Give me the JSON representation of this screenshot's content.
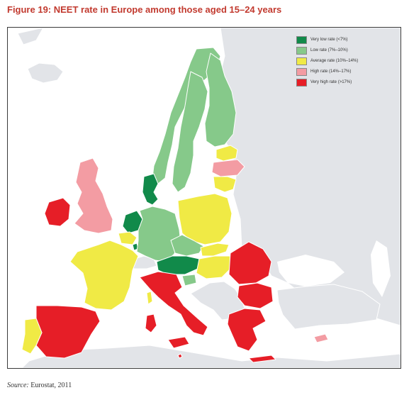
{
  "figure": {
    "title": "Figure 19: NEET rate in Europe among those aged 15–24 years",
    "source_label": "Source:",
    "source_text": " Eurostat, 2011"
  },
  "legend": [
    {
      "label": "Very low rate (<7%)",
      "color": "#118a4a"
    },
    {
      "label": "Low rate (7%–10%)",
      "color": "#86c98a"
    },
    {
      "label": "Average rate (10%–14%)",
      "color": "#f0ea45"
    },
    {
      "label": "High rate (14%–17%)",
      "color": "#f39ca3"
    },
    {
      "label": "Very high rate (>17%)",
      "color": "#e61e27"
    }
  ],
  "colors": {
    "no_data": "#e2e4e8",
    "sea": "#ffffff",
    "title": "#c23a2f"
  },
  "map": {
    "countries": {
      "iceland": "no_data",
      "ireland": "very_high",
      "united-kingdom": "high",
      "norway": "low",
      "sweden": "low",
      "finland": "low",
      "estonia": "average",
      "latvia": "high",
      "lithuania": "average",
      "denmark": "very_low",
      "netherlands": "very_low",
      "belgium": "average",
      "luxembourg": "very_low",
      "germany": "low",
      "poland": "average",
      "czech-republic": "low",
      "slovakia": "average",
      "austria": "very_low",
      "switzerland": "no_data",
      "slovenia": "low",
      "hungary": "average",
      "france": "average",
      "spain": "very_high",
      "portugal": "average",
      "italy": "very_high",
      "corsica": "average",
      "sardinia": "very_high",
      "sicily": "very_high",
      "malta": "very_high",
      "romania": "very_high",
      "bulgaria": "very_high",
      "greece": "very_high",
      "crete": "very_high",
      "cyprus": "high"
    }
  }
}
